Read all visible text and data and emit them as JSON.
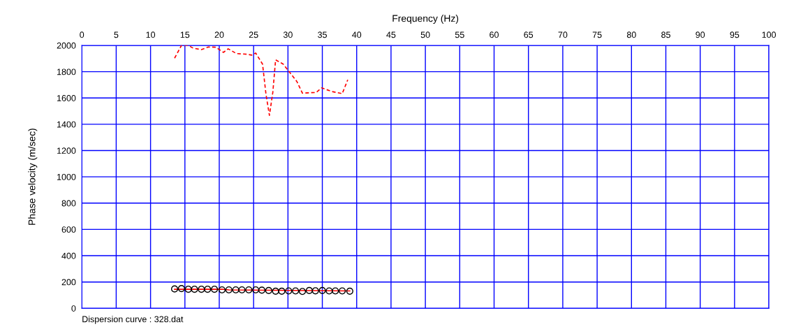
{
  "chart_data": {
    "type": "line",
    "xlabel": "Frequency (Hz)",
    "ylabel": "Phase velocity (m/sec)",
    "annotations": [
      "Dispersion curve : 328.dat"
    ],
    "xlim": [
      0,
      100
    ],
    "xticks": [
      0,
      5,
      10,
      15,
      20,
      25,
      30,
      35,
      40,
      45,
      50,
      55,
      60,
      65,
      70,
      75,
      80,
      85,
      90,
      95,
      100
    ],
    "ylim": [
      0,
      2000
    ],
    "yticks": [
      0,
      200,
      400,
      600,
      800,
      1000,
      1200,
      1400,
      1600,
      1800,
      2000
    ],
    "grid": true,
    "legend": false,
    "series": [
      {
        "type": "line",
        "line_style": "dashed",
        "color": "#ff0000",
        "x": [
          13.5,
          14.5,
          15.5,
          16.2,
          17.4,
          18.4,
          19.5,
          20.6,
          21.3,
          22.5,
          24.0,
          24.7,
          25.3,
          26.3,
          26.8,
          27.3,
          27.8,
          28.2,
          29.3,
          30.1,
          31.3,
          32.1,
          34.1,
          34.9,
          36.4,
          37.9,
          38.7
        ],
        "values": [
          1903,
          2000,
          2000,
          1979,
          1968,
          1988,
          1986,
          1947,
          1974,
          1938,
          1933,
          1926,
          1942,
          1858,
          1628,
          1468,
          1645,
          1890,
          1858,
          1805,
          1725,
          1637,
          1642,
          1677,
          1649,
          1633,
          1738
        ]
      },
      {
        "type": "line",
        "line_style": "solid",
        "color": "#ff0000",
        "x": [
          13.5,
          20.4,
          21.4,
          39.0
        ],
        "values": [
          145,
          145,
          140,
          132
        ]
      },
      {
        "type": "scatter",
        "marker": "circle",
        "color": "#000000",
        "x": [
          13.5,
          14.5,
          15.5,
          16.4,
          17.4,
          18.3,
          19.3,
          20.4,
          21.4,
          22.4,
          23.3,
          24.3,
          25.3,
          26.2,
          27.2,
          28.2,
          29.1,
          30.1,
          31.1,
          32.1,
          33.1,
          34.0,
          35.0,
          36.0,
          36.9,
          37.9,
          39.0
        ],
        "values": [
          147,
          150,
          145,
          145,
          145,
          145,
          145,
          140,
          140,
          140,
          140,
          140,
          140,
          138,
          135,
          130,
          130,
          132,
          132,
          128,
          135,
          133,
          135,
          132,
          132,
          132,
          130
        ]
      }
    ]
  }
}
